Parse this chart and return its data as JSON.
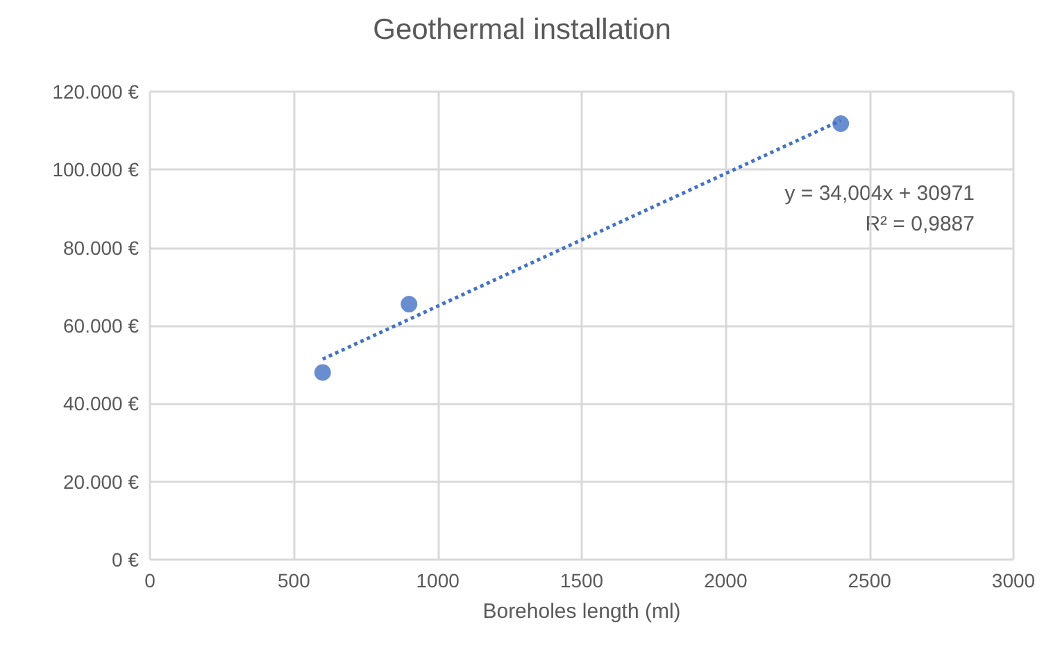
{
  "chart_data": {
    "type": "scatter",
    "title": "Geothermal installation",
    "xlabel": "Boreholes length (ml)",
    "series": [
      {
        "color": "#4472c4",
        "x": [
          600,
          900,
          2400
        ],
        "values": [
          48000,
          65500,
          111800
        ],
        "marker": "circle"
      },
      {
        "type": "line",
        "color": "#4472c4",
        "x": [
          600,
          2400
        ],
        "values": [
          51400,
          112600
        ],
        "line_style": "dotted",
        "marker": "none"
      }
    ],
    "annotations": [
      "y = 34,004x + 30971",
      "R² = 0,9887"
    ],
    "xlim": [
      0,
      3000
    ],
    "xticks": [
      0,
      500,
      1000,
      1500,
      2000,
      2500,
      3000
    ],
    "ylim": [
      0,
      120000
    ],
    "yticks": [
      {
        "value": 0,
        "label": "0 €"
      },
      {
        "value": 20000,
        "label": "20.000 €"
      },
      {
        "value": 40000,
        "label": "40.000 €"
      },
      {
        "value": 60000,
        "label": "60.000 €"
      },
      {
        "value": 80000,
        "label": "80.000 €"
      },
      {
        "value": 100000,
        "label": "100.000 €"
      },
      {
        "value": 120000,
        "label": "120.000 €"
      }
    ],
    "grid": true
  }
}
